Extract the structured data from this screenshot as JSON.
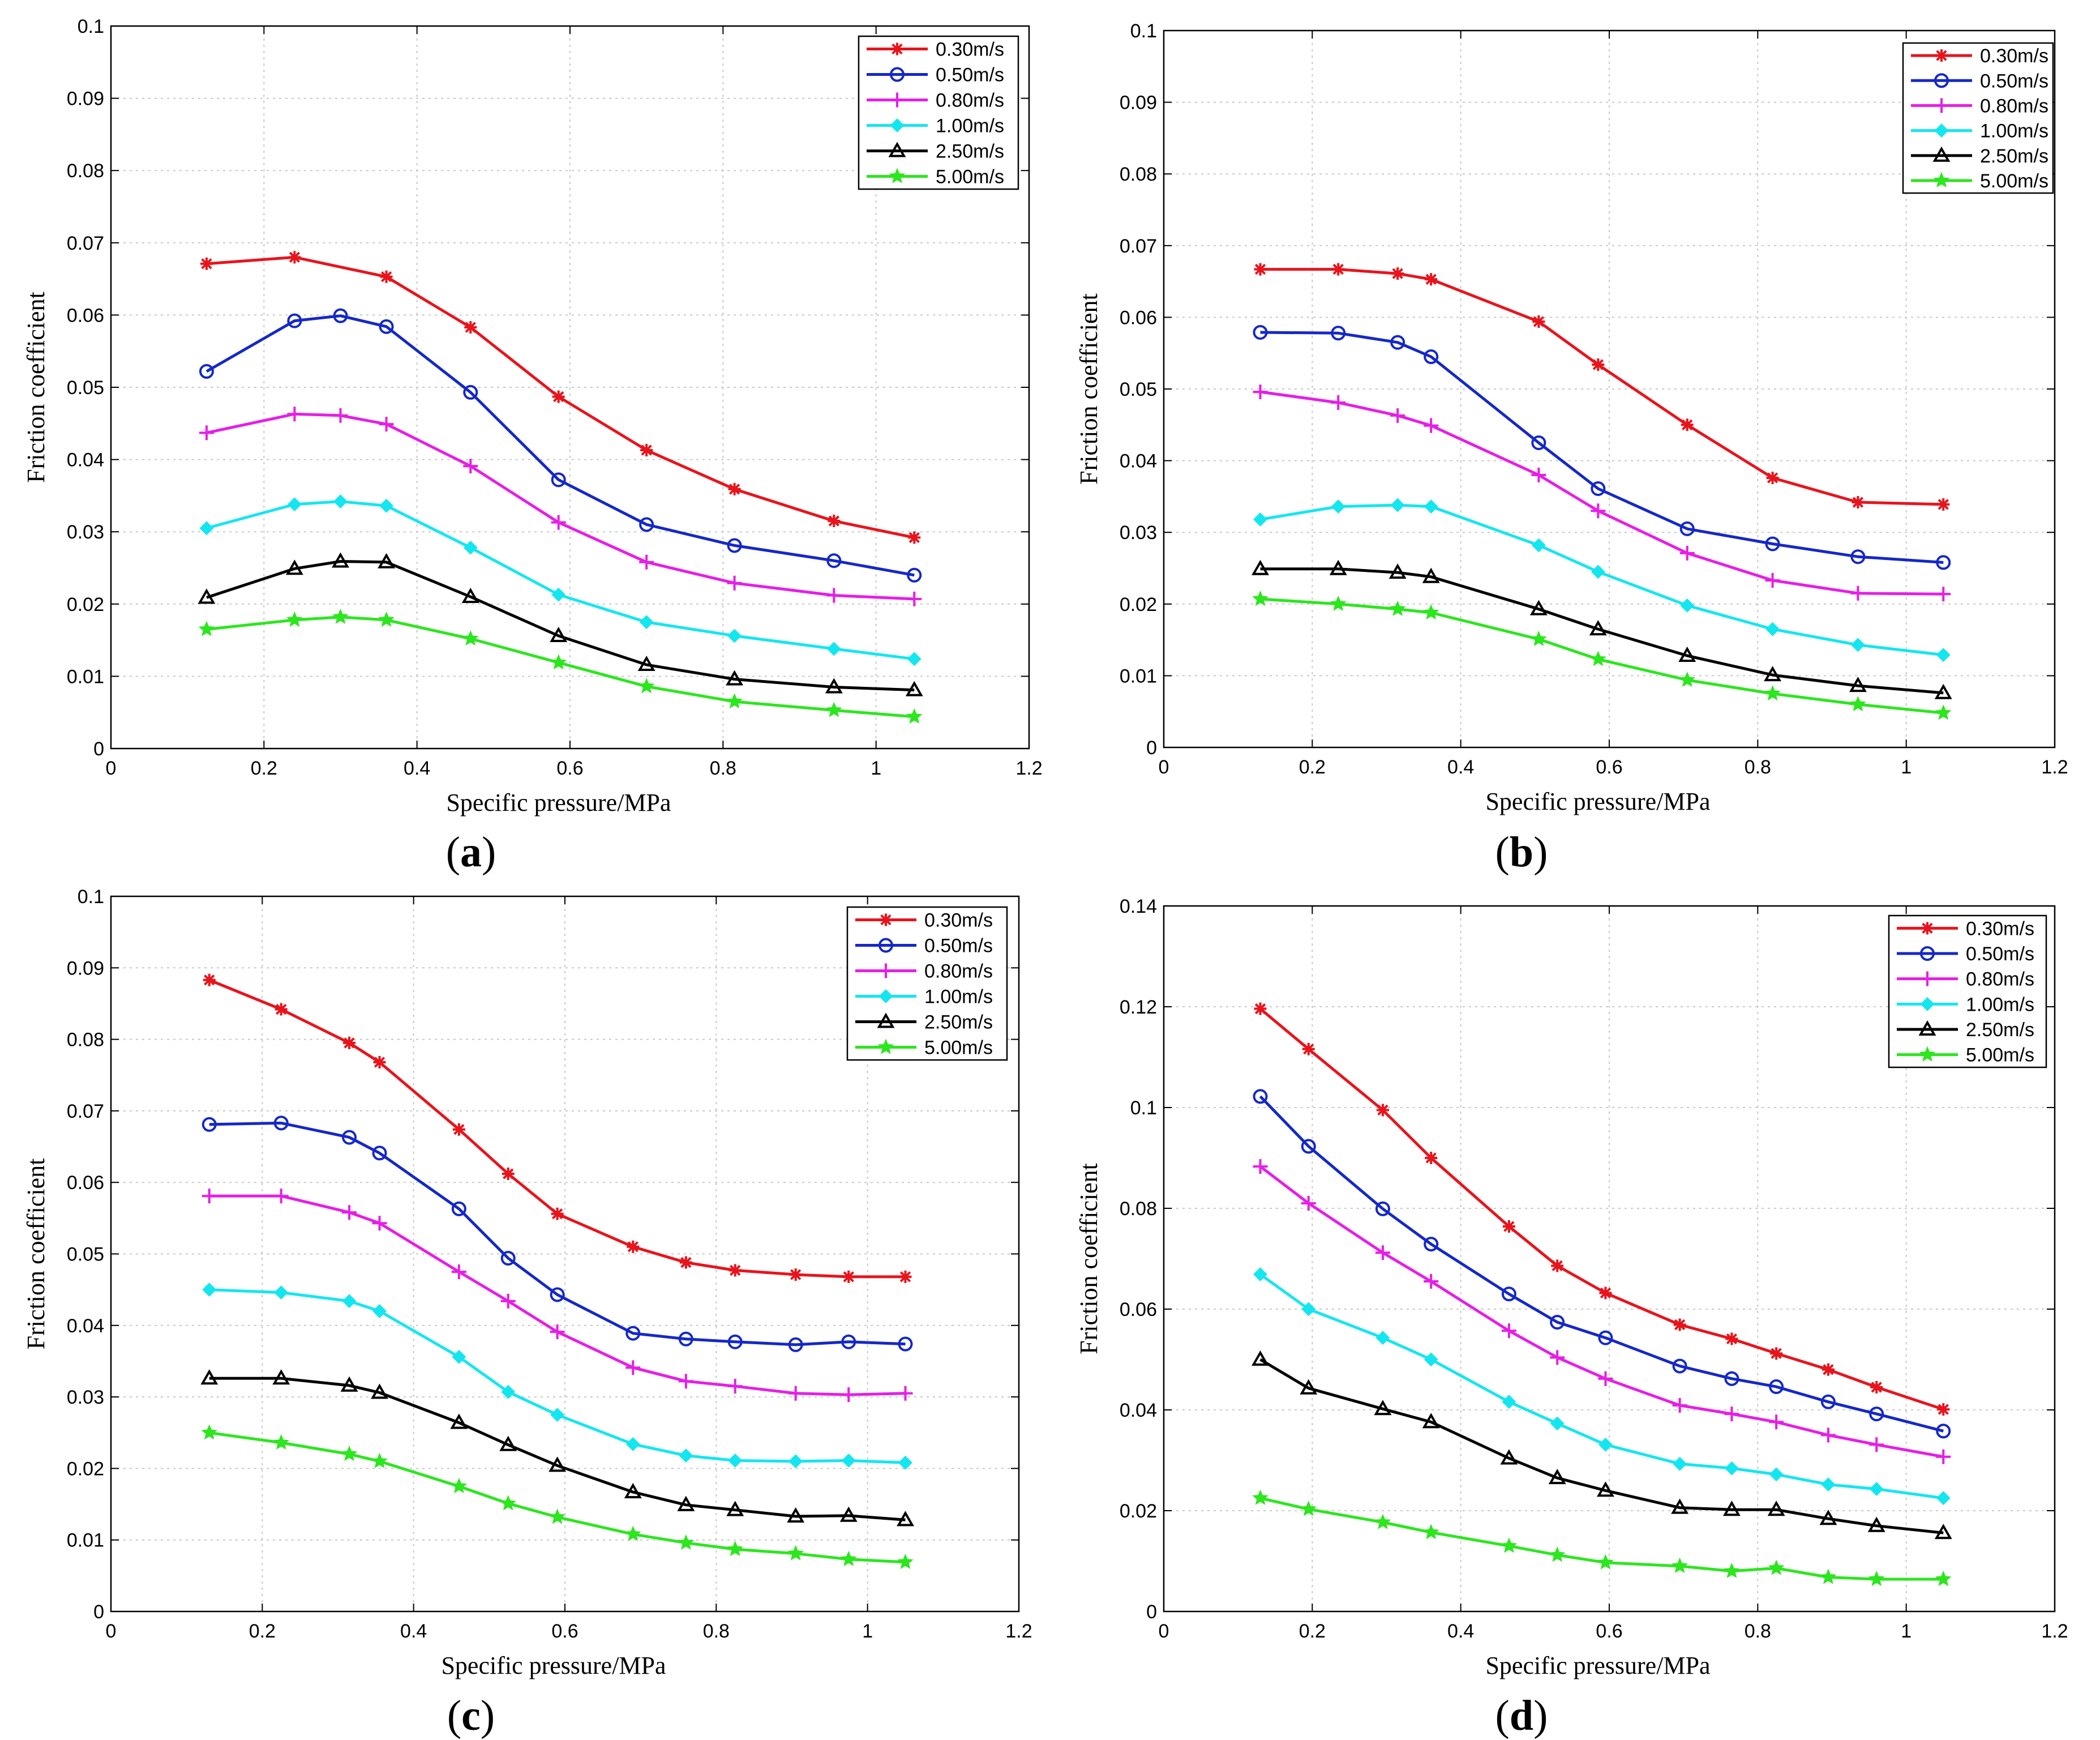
{
  "series_names": [
    "0.30m/s",
    "0.50m/s",
    "0.80m/s",
    "1.00m/s",
    "2.50m/s",
    "5.00m/s"
  ],
  "series_colors": [
    "#e8141c",
    "#1428c8",
    "#e61ee6",
    "#14e6f0",
    "#000000",
    "#2ce61e"
  ],
  "chart_data": [
    {
      "type": "line",
      "label": "(a)",
      "xlabel": "Specific pressure/MPa",
      "ylabel": "Friction coefficient",
      "xlim": [
        0,
        1.2
      ],
      "ylim": [
        0,
        0.1
      ],
      "xticks": [
        "0",
        "0.2",
        "0.4",
        "0.6",
        "0.8",
        "1",
        "1.2"
      ],
      "yticks": [
        "0",
        "0.01",
        "0.02",
        "0.03",
        "0.04",
        "0.05",
        "0.06",
        "0.07",
        "0.08",
        "0.09",
        "0.1"
      ],
      "legend": "top-right",
      "grid": true,
      "series": [
        {
          "name": "0.30m/s",
          "x": [
            0.125,
            0.24,
            0.36,
            0.47,
            0.585,
            0.7,
            0.815,
            0.945,
            1.05
          ],
          "values": [
            0.0671,
            0.068,
            0.0653,
            0.0583,
            0.0487,
            0.0413,
            0.0359,
            0.0315,
            0.0292
          ]
        },
        {
          "name": "0.50m/s",
          "x": [
            0.125,
            0.24,
            0.3,
            0.36,
            0.47,
            0.585,
            0.7,
            0.815,
            0.945,
            1.05
          ],
          "values": [
            0.0522,
            0.0592,
            0.0599,
            0.0584,
            0.0493,
            0.0372,
            0.031,
            0.0281,
            0.026,
            0.024
          ]
        },
        {
          "name": "0.80m/s",
          "x": [
            0.125,
            0.24,
            0.3,
            0.36,
            0.47,
            0.585,
            0.7,
            0.815,
            0.945,
            1.05
          ],
          "values": [
            0.0437,
            0.0463,
            0.0461,
            0.0449,
            0.0391,
            0.0313,
            0.0258,
            0.0229,
            0.0212,
            0.0207
          ]
        },
        {
          "name": "1.00m/s",
          "x": [
            0.125,
            0.24,
            0.3,
            0.36,
            0.47,
            0.585,
            0.7,
            0.815,
            0.945,
            1.05
          ],
          "values": [
            0.0305,
            0.0338,
            0.0342,
            0.0336,
            0.0278,
            0.0213,
            0.0175,
            0.0156,
            0.0138,
            0.0124
          ]
        },
        {
          "name": "2.50m/s",
          "x": [
            0.125,
            0.24,
            0.3,
            0.36,
            0.47,
            0.585,
            0.7,
            0.815,
            0.945,
            1.05
          ],
          "values": [
            0.0209,
            0.0249,
            0.0259,
            0.0258,
            0.021,
            0.0156,
            0.0116,
            0.0096,
            0.0085,
            0.0081
          ]
        },
        {
          "name": "5.00m/s",
          "x": [
            0.125,
            0.24,
            0.3,
            0.36,
            0.47,
            0.585,
            0.7,
            0.815,
            0.945,
            1.05
          ],
          "values": [
            0.0165,
            0.0178,
            0.0182,
            0.0178,
            0.0152,
            0.0119,
            0.0086,
            0.0065,
            0.0053,
            0.0044
          ]
        }
      ]
    },
    {
      "type": "line",
      "label": "(b)",
      "xlabel": "Specific pressure/MPa",
      "ylabel": "Friction coefficient",
      "xlim": [
        0,
        1.2
      ],
      "ylim": [
        0,
        0.1
      ],
      "xticks": [
        "0",
        "0.2",
        "0.4",
        "0.6",
        "0.8",
        "1",
        "1.2"
      ],
      "yticks": [
        "0",
        "0.01",
        "0.02",
        "0.03",
        "0.04",
        "0.05",
        "0.06",
        "0.07",
        "0.08",
        "0.09",
        "0.1"
      ],
      "legend": "top-right",
      "grid": true,
      "series": [
        {
          "name": "0.30m/s",
          "x": [
            0.13,
            0.235,
            0.315,
            0.36,
            0.505,
            0.585,
            0.705,
            0.82,
            0.935,
            1.05
          ],
          "values": [
            0.0667,
            0.0667,
            0.0661,
            0.0653,
            0.0594,
            0.0534,
            0.045,
            0.0376,
            0.0342,
            0.0339
          ]
        },
        {
          "name": "0.50m/s",
          "x": [
            0.13,
            0.235,
            0.315,
            0.36,
            0.505,
            0.585,
            0.705,
            0.82,
            0.935,
            1.05
          ],
          "values": [
            0.0579,
            0.0578,
            0.0565,
            0.0545,
            0.0425,
            0.0361,
            0.0305,
            0.0284,
            0.0266,
            0.0258
          ]
        },
        {
          "name": "0.80m/s",
          "x": [
            0.13,
            0.235,
            0.315,
            0.36,
            0.505,
            0.585,
            0.705,
            0.82,
            0.935,
            1.05
          ],
          "values": [
            0.0496,
            0.0481,
            0.0463,
            0.0449,
            0.038,
            0.033,
            0.0271,
            0.0233,
            0.0215,
            0.0214
          ]
        },
        {
          "name": "1.00m/s",
          "x": [
            0.13,
            0.235,
            0.315,
            0.36,
            0.505,
            0.585,
            0.705,
            0.82,
            0.935,
            1.05
          ],
          "values": [
            0.0318,
            0.0336,
            0.0338,
            0.0336,
            0.0282,
            0.0245,
            0.0198,
            0.0165,
            0.0143,
            0.0129
          ]
        },
        {
          "name": "2.50m/s",
          "x": [
            0.13,
            0.235,
            0.315,
            0.36,
            0.505,
            0.585,
            0.705,
            0.82,
            0.935,
            1.05
          ],
          "values": [
            0.0249,
            0.0249,
            0.0244,
            0.0238,
            0.0193,
            0.0165,
            0.0128,
            0.0101,
            0.0086,
            0.0076
          ]
        },
        {
          "name": "5.00m/s",
          "x": [
            0.13,
            0.235,
            0.315,
            0.36,
            0.505,
            0.585,
            0.705,
            0.82,
            0.935,
            1.05
          ],
          "values": [
            0.0207,
            0.02,
            0.0193,
            0.0188,
            0.0151,
            0.0123,
            0.0094,
            0.0075,
            0.006,
            0.0048
          ]
        }
      ]
    },
    {
      "type": "line",
      "label": "(c)",
      "xlabel": "Specific pressure/MPa",
      "ylabel": "Friction coefficient",
      "xlim": [
        0,
        1.2
      ],
      "ylim": [
        0,
        0.1
      ],
      "xticks": [
        "0",
        "0.2",
        "0.4",
        "0.6",
        "0.8",
        "1",
        "1.2"
      ],
      "yticks": [
        "0",
        "0.01",
        "0.02",
        "0.03",
        "0.04",
        "0.05",
        "0.06",
        "0.07",
        "0.08",
        "0.09",
        "0.1"
      ],
      "legend": "top-right",
      "grid": true,
      "series": [
        {
          "name": "0.30m/s",
          "x": [
            0.13,
            0.225,
            0.315,
            0.355,
            0.46,
            0.525,
            0.59,
            0.69,
            0.76,
            0.825,
            0.905,
            0.975,
            1.05
          ],
          "values": [
            0.0883,
            0.0842,
            0.0795,
            0.0768,
            0.0674,
            0.0612,
            0.0556,
            0.051,
            0.0488,
            0.0477,
            0.0471,
            0.0468,
            0.0468
          ]
        },
        {
          "name": "0.50m/s",
          "x": [
            0.13,
            0.225,
            0.315,
            0.355,
            0.46,
            0.525,
            0.59,
            0.69,
            0.76,
            0.825,
            0.905,
            0.975,
            1.05
          ],
          "values": [
            0.0681,
            0.0683,
            0.0663,
            0.0641,
            0.0563,
            0.0494,
            0.0443,
            0.0389,
            0.0381,
            0.0377,
            0.0373,
            0.0377,
            0.0374
          ]
        },
        {
          "name": "0.80m/s",
          "x": [
            0.13,
            0.225,
            0.315,
            0.355,
            0.46,
            0.525,
            0.59,
            0.69,
            0.76,
            0.825,
            0.905,
            0.975,
            1.05
          ],
          "values": [
            0.0581,
            0.0581,
            0.0558,
            0.0543,
            0.0475,
            0.0434,
            0.0391,
            0.0341,
            0.0322,
            0.0315,
            0.0305,
            0.0303,
            0.0305
          ]
        },
        {
          "name": "1.00m/s",
          "x": [
            0.13,
            0.225,
            0.315,
            0.355,
            0.46,
            0.525,
            0.59,
            0.69,
            0.76,
            0.825,
            0.905,
            0.975,
            1.05
          ],
          "values": [
            0.045,
            0.0446,
            0.0434,
            0.042,
            0.0356,
            0.0307,
            0.0275,
            0.0234,
            0.0218,
            0.0211,
            0.021,
            0.0211,
            0.0208
          ]
        },
        {
          "name": "2.50m/s",
          "x": [
            0.13,
            0.225,
            0.315,
            0.355,
            0.46,
            0.525,
            0.59,
            0.69,
            0.76,
            0.825,
            0.905,
            0.975,
            1.05
          ],
          "values": [
            0.0326,
            0.0326,
            0.0316,
            0.0306,
            0.0264,
            0.0233,
            0.0204,
            0.0167,
            0.0149,
            0.0142,
            0.0133,
            0.0134,
            0.0128
          ]
        },
        {
          "name": "5.00m/s",
          "x": [
            0.13,
            0.225,
            0.315,
            0.355,
            0.46,
            0.525,
            0.59,
            0.69,
            0.76,
            0.825,
            0.905,
            0.975,
            1.05
          ],
          "values": [
            0.025,
            0.0236,
            0.022,
            0.021,
            0.0175,
            0.0151,
            0.0132,
            0.0108,
            0.0096,
            0.0087,
            0.0081,
            0.0073,
            0.0069
          ]
        }
      ]
    },
    {
      "type": "line",
      "label": "(d)",
      "xlabel": "Specific pressure/MPa",
      "ylabel": "Friction coefficient",
      "xlim": [
        0,
        1.2
      ],
      "ylim": [
        0,
        0.14
      ],
      "xticks": [
        "0",
        "0.2",
        "0.4",
        "0.6",
        "0.8",
        "1",
        "1.2"
      ],
      "yticks": [
        "0",
        "0.02",
        "0.04",
        "0.06",
        "0.08",
        "0.1",
        "0.12",
        "0.14"
      ],
      "legend": "top-right",
      "grid": true,
      "series": [
        {
          "name": "0.30m/s",
          "x": [
            0.13,
            0.195,
            0.295,
            0.36,
            0.465,
            0.53,
            0.595,
            0.695,
            0.765,
            0.825,
            0.895,
            0.96,
            1.05
          ],
          "values": [
            0.1196,
            0.1116,
            0.0995,
            0.09,
            0.0764,
            0.0686,
            0.0632,
            0.0569,
            0.0541,
            0.0512,
            0.048,
            0.0445,
            0.0401
          ]
        },
        {
          "name": "0.50m/s",
          "x": [
            0.13,
            0.195,
            0.295,
            0.36,
            0.465,
            0.53,
            0.595,
            0.695,
            0.765,
            0.825,
            0.895,
            0.96,
            1.05
          ],
          "values": [
            0.1022,
            0.0923,
            0.0799,
            0.0729,
            0.063,
            0.0574,
            0.0543,
            0.0487,
            0.0462,
            0.0446,
            0.0416,
            0.0392,
            0.0358
          ]
        },
        {
          "name": "0.80m/s",
          "x": [
            0.13,
            0.195,
            0.295,
            0.36,
            0.465,
            0.53,
            0.595,
            0.695,
            0.765,
            0.825,
            0.895,
            0.96,
            1.05
          ],
          "values": [
            0.0883,
            0.081,
            0.0712,
            0.0655,
            0.0557,
            0.0504,
            0.0462,
            0.0409,
            0.0392,
            0.0376,
            0.035,
            0.0331,
            0.0307
          ]
        },
        {
          "name": "1.00m/s",
          "x": [
            0.13,
            0.195,
            0.295,
            0.36,
            0.465,
            0.53,
            0.595,
            0.695,
            0.765,
            0.825,
            0.895,
            0.96,
            1.05
          ],
          "values": [
            0.0669,
            0.06,
            0.0543,
            0.05,
            0.0416,
            0.0373,
            0.0331,
            0.0293,
            0.0284,
            0.0272,
            0.0252,
            0.0243,
            0.0225
          ]
        },
        {
          "name": "2.50m/s",
          "x": [
            0.13,
            0.195,
            0.295,
            0.36,
            0.465,
            0.53,
            0.595,
            0.695,
            0.765,
            0.825,
            0.895,
            0.96,
            1.05
          ],
          "values": [
            0.05,
            0.0443,
            0.0402,
            0.0376,
            0.0304,
            0.0265,
            0.024,
            0.0206,
            0.0202,
            0.0202,
            0.0184,
            0.017,
            0.0156
          ]
        },
        {
          "name": "5.00m/s",
          "x": [
            0.13,
            0.195,
            0.295,
            0.36,
            0.465,
            0.53,
            0.595,
            0.695,
            0.765,
            0.825,
            0.895,
            0.96,
            1.05
          ],
          "values": [
            0.0225,
            0.0203,
            0.0177,
            0.0157,
            0.013,
            0.0112,
            0.0097,
            0.009,
            0.008,
            0.0086,
            0.0068,
            0.0064,
            0.0064
          ]
        }
      ]
    }
  ]
}
